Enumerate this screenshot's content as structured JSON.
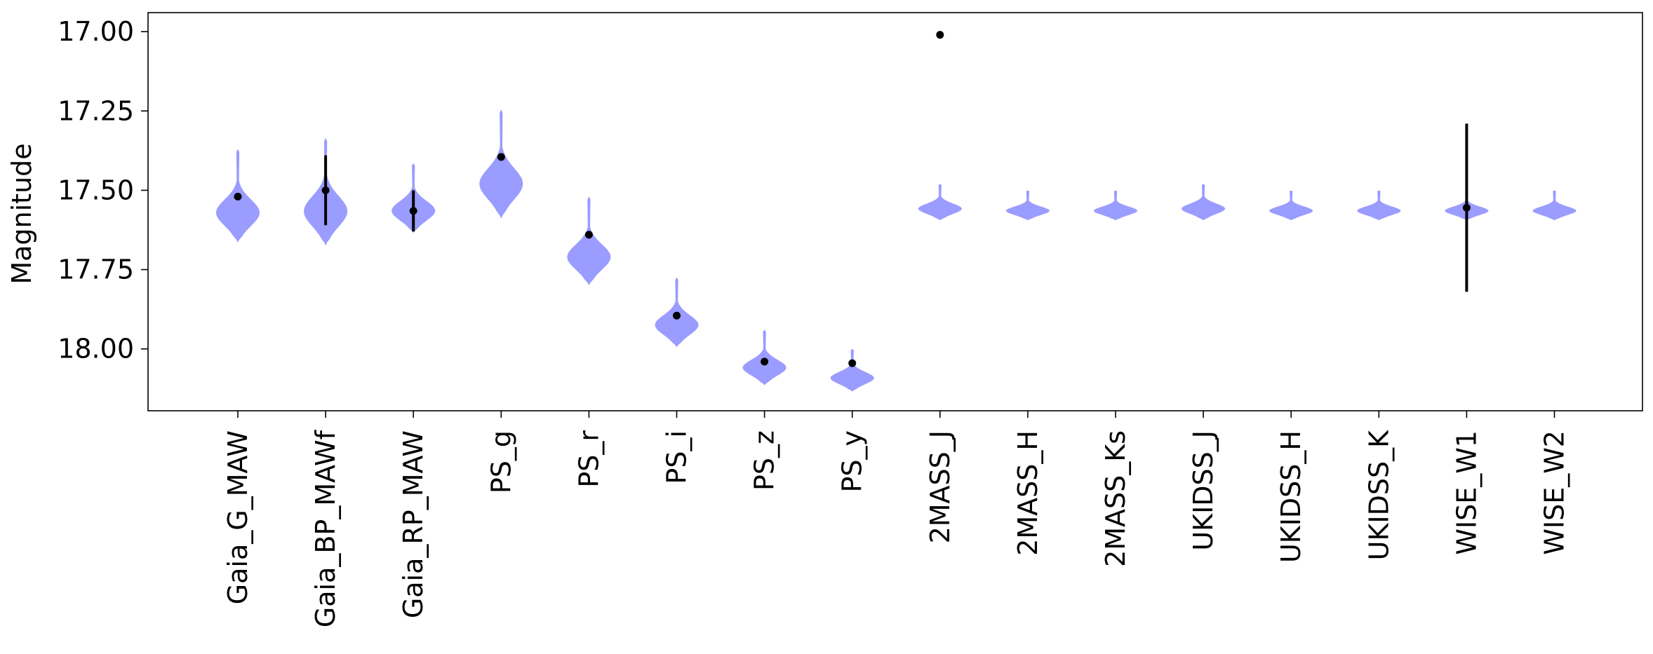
{
  "chart_data": {
    "type": "violin",
    "title": "",
    "xlabel": "",
    "ylabel": "Magnitude",
    "ylim": [
      18.195,
      16.94
    ],
    "y_inverted": true,
    "yticks": [
      17.0,
      17.25,
      17.5,
      17.75,
      18.0
    ],
    "ytick_labels": [
      "17.00",
      "17.25",
      "17.50",
      "17.75",
      "18.00"
    ],
    "grid": false,
    "violin_color": "#9a9cff",
    "point_color": "#000000",
    "categories": [
      "Gaia_G_MAW",
      "Gaia_BP_MAWf",
      "Gaia_RP_MAW",
      "PS_g",
      "PS_r",
      "PS_i",
      "PS_z",
      "PS_y",
      "2MASS_J",
      "2MASS_H",
      "2MASS_Ks",
      "UKIDSS_J",
      "UKIDSS_H",
      "UKIDSS_K",
      "WISE_W1",
      "WISE_W2"
    ],
    "points": [
      {
        "band": "Gaia_G_MAW",
        "mag": 17.52,
        "err_low": null,
        "err_high": null
      },
      {
        "band": "Gaia_BP_MAWf",
        "mag": 17.5,
        "err_low": 17.39,
        "err_high": 17.61
      },
      {
        "band": "Gaia_RP_MAW",
        "mag": 17.565,
        "err_low": 17.5,
        "err_high": 17.63
      },
      {
        "band": "PS_g",
        "mag": 17.395,
        "err_low": null,
        "err_high": null
      },
      {
        "band": "PS_r",
        "mag": 17.64,
        "err_low": null,
        "err_high": null
      },
      {
        "band": "PS_i",
        "mag": 17.895,
        "err_low": null,
        "err_high": null
      },
      {
        "band": "PS_z",
        "mag": 18.04,
        "err_low": null,
        "err_high": null
      },
      {
        "band": "PS_y",
        "mag": 18.045,
        "err_low": null,
        "err_high": null
      },
      {
        "band": "2MASS_J",
        "mag": 17.01,
        "err_low": null,
        "err_high": null
      },
      {
        "band": "WISE_W1",
        "mag": 17.555,
        "err_low": 17.29,
        "err_high": 17.82
      }
    ],
    "violins": [
      {
        "band": "Gaia_G_MAW",
        "min": 17.37,
        "max": 17.665
      },
      {
        "band": "Gaia_BP_MAWf",
        "min": 17.335,
        "max": 17.675
      },
      {
        "band": "Gaia_RP_MAW",
        "min": 17.415,
        "max": 17.635
      },
      {
        "band": "PS_g",
        "min": 17.245,
        "max": 17.59
      },
      {
        "band": "PS_r",
        "min": 17.52,
        "max": 17.8
      },
      {
        "band": "PS_i",
        "min": 17.775,
        "max": 17.995
      },
      {
        "band": "PS_z",
        "min": 17.94,
        "max": 18.115
      },
      {
        "band": "PS_y",
        "min": 18.0,
        "max": 18.135
      },
      {
        "band": "2MASS_J",
        "min": 17.48,
        "max": 17.595
      },
      {
        "band": "2MASS_H",
        "min": 17.5,
        "max": 17.595
      },
      {
        "band": "2MASS_Ks",
        "min": 17.5,
        "max": 17.595
      },
      {
        "band": "UKIDSS_J",
        "min": 17.48,
        "max": 17.595
      },
      {
        "band": "UKIDSS_H",
        "min": 17.5,
        "max": 17.595
      },
      {
        "band": "UKIDSS_K",
        "min": 17.5,
        "max": 17.595
      },
      {
        "band": "WISE_W1",
        "min": 17.5,
        "max": 17.595
      },
      {
        "band": "WISE_W2",
        "min": 17.5,
        "max": 17.595
      }
    ]
  }
}
